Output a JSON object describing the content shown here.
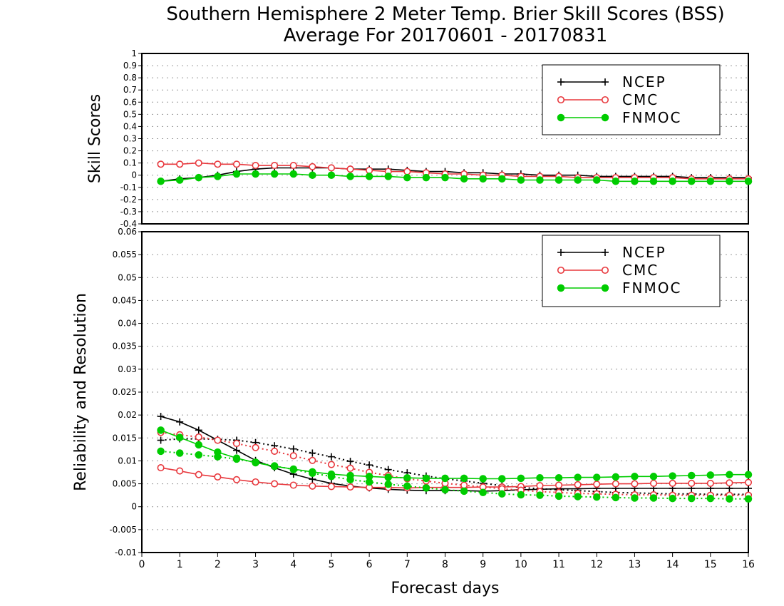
{
  "title_line1": "Southern Hemisphere 2 Meter Temp. Brier Skill Scores (BSS)",
  "title_line2": "Average For 20170601 - 20170831",
  "colors": {
    "NCEP": "#000000",
    "CMC": "#e8383d",
    "FNMOC": "#00cc00"
  },
  "chart_data": [
    {
      "type": "line",
      "ylabel": "Skill Scores",
      "ylim": [
        -0.4,
        1
      ],
      "yticks": [
        "1",
        "0.9",
        "0.8",
        "0.7",
        "0.6",
        "0.5",
        "0.4",
        "0.3",
        "0.2",
        "0.1",
        "0",
        "-0.1",
        "-0.2",
        "-0.3",
        "-0.4"
      ],
      "grid": true,
      "legend": [
        "NCEP",
        "CMC",
        "FNMOC"
      ],
      "legend_position": "top-right",
      "x": [
        0.5,
        1,
        1.5,
        2,
        2.5,
        3,
        3.5,
        4,
        4.5,
        5,
        5.5,
        6,
        6.5,
        7,
        7.5,
        8,
        8.5,
        9,
        9.5,
        10,
        10.5,
        11,
        11.5,
        12,
        12.5,
        13,
        13.5,
        14,
        14.5,
        15,
        15.5,
        16
      ],
      "series": [
        {
          "name": "NCEP",
          "marker": "plus",
          "values": [
            -0.05,
            -0.03,
            -0.02,
            0.0,
            0.03,
            0.05,
            0.06,
            0.06,
            0.06,
            0.06,
            0.05,
            0.05,
            0.05,
            0.04,
            0.03,
            0.03,
            0.02,
            0.02,
            0.01,
            0.01,
            0.0,
            0.0,
            0.0,
            -0.01,
            -0.01,
            -0.01,
            -0.01,
            -0.01,
            -0.02,
            -0.02,
            -0.02,
            -0.02
          ]
        },
        {
          "name": "CMC",
          "marker": "open-circle",
          "values": [
            0.09,
            0.09,
            0.1,
            0.09,
            0.09,
            0.08,
            0.08,
            0.08,
            0.07,
            0.06,
            0.05,
            0.04,
            0.03,
            0.03,
            0.02,
            0.01,
            0.01,
            0.0,
            0.0,
            -0.01,
            -0.01,
            -0.01,
            -0.02,
            -0.02,
            -0.02,
            -0.02,
            -0.02,
            -0.02,
            -0.03,
            -0.03,
            -0.03,
            -0.03
          ]
        },
        {
          "name": "FNMOC",
          "marker": "filled-circle",
          "values": [
            -0.05,
            -0.04,
            -0.02,
            -0.01,
            0.01,
            0.01,
            0.01,
            0.01,
            0.0,
            0.0,
            -0.01,
            -0.01,
            -0.01,
            -0.02,
            -0.02,
            -0.02,
            -0.03,
            -0.03,
            -0.03,
            -0.04,
            -0.04,
            -0.04,
            -0.04,
            -0.04,
            -0.05,
            -0.05,
            -0.05,
            -0.05,
            -0.05,
            -0.05,
            -0.05,
            -0.05
          ]
        }
      ]
    },
    {
      "type": "line",
      "xlabel": "Forecast days",
      "ylabel": "Reliability and Resolution",
      "ylim": [
        -0.01,
        0.06
      ],
      "yticks": [
        "0.06",
        "0.055",
        "0.05",
        "0.045",
        "0.04",
        "0.035",
        "0.03",
        "0.025",
        "0.02",
        "0.015",
        "0.01",
        "0.005",
        "0",
        "-0.005",
        "-0.01"
      ],
      "xlim": [
        0,
        16
      ],
      "xticks": [
        "0",
        "1",
        "2",
        "3",
        "4",
        "5",
        "6",
        "7",
        "8",
        "9",
        "10",
        "11",
        "12",
        "13",
        "14",
        "15",
        "16"
      ],
      "grid": true,
      "legend": [
        "NCEP",
        "CMC",
        "FNMOC"
      ],
      "legend_position": "top-right",
      "x": [
        0.5,
        1,
        1.5,
        2,
        2.5,
        3,
        3.5,
        4,
        4.5,
        5,
        5.5,
        6,
        6.5,
        7,
        7.5,
        8,
        8.5,
        9,
        9.5,
        10,
        10.5,
        11,
        11.5,
        12,
        12.5,
        13,
        13.5,
        14,
        14.5,
        15,
        15.5,
        16
      ],
      "series": [
        {
          "name": "NCEP",
          "metric": "resolution",
          "dash": "solid",
          "marker": "plus",
          "values": [
            0.0197,
            0.0185,
            0.0167,
            0.0145,
            0.0123,
            0.0101,
            0.0085,
            0.0071,
            0.006,
            0.0051,
            0.0045,
            0.0041,
            0.0038,
            0.0036,
            0.0035,
            0.0035,
            0.0035,
            0.0034,
            0.0035,
            0.0037,
            0.0038,
            0.0039,
            0.0039,
            0.004,
            0.004,
            0.004,
            0.004,
            0.004,
            0.004,
            0.004,
            0.004,
            0.004
          ]
        },
        {
          "name": "NCEP",
          "metric": "reliability",
          "dash": "dotted",
          "marker": "plus",
          "values": [
            0.0145,
            0.0148,
            0.0148,
            0.0147,
            0.0145,
            0.014,
            0.0133,
            0.0126,
            0.0117,
            0.0109,
            0.0099,
            0.0091,
            0.0081,
            0.0074,
            0.0067,
            0.0061,
            0.0056,
            0.0051,
            0.0046,
            0.0042,
            0.0039,
            0.0037,
            0.0035,
            0.0033,
            0.0031,
            0.003,
            0.0029,
            0.0028,
            0.0028,
            0.0027,
            0.0027,
            0.0027
          ]
        },
        {
          "name": "CMC",
          "metric": "resolution",
          "dash": "solid",
          "marker": "open-circle",
          "values": [
            0.0085,
            0.0078,
            0.007,
            0.0065,
            0.0059,
            0.0054,
            0.005,
            0.0047,
            0.0045,
            0.0044,
            0.0043,
            0.0042,
            0.0042,
            0.0041,
            0.0042,
            0.0042,
            0.0042,
            0.0043,
            0.0043,
            0.0044,
            0.0046,
            0.0047,
            0.0048,
            0.0049,
            0.005,
            0.005,
            0.0051,
            0.0051,
            0.0051,
            0.0051,
            0.0052,
            0.0053
          ]
        },
        {
          "name": "CMC",
          "metric": "reliability",
          "dash": "dotted",
          "marker": "open-circle",
          "values": [
            0.0162,
            0.0157,
            0.0152,
            0.0145,
            0.0138,
            0.0129,
            0.0121,
            0.0111,
            0.0101,
            0.0092,
            0.0084,
            0.0075,
            0.0068,
            0.0061,
            0.0056,
            0.0051,
            0.0047,
            0.0043,
            0.0039,
            0.0036,
            0.0033,
            0.0031,
            0.0029,
            0.0028,
            0.0027,
            0.0026,
            0.0026,
            0.0025,
            0.0025,
            0.0025,
            0.0025,
            0.0025
          ]
        },
        {
          "name": "FNMOC",
          "metric": "resolution",
          "dash": "solid",
          "marker": "filled-circle",
          "values": [
            0.0167,
            0.0151,
            0.0135,
            0.0119,
            0.0106,
            0.0096,
            0.0088,
            0.0082,
            0.0076,
            0.0071,
            0.0068,
            0.0066,
            0.0064,
            0.0063,
            0.0062,
            0.0062,
            0.0062,
            0.0061,
            0.0061,
            0.0062,
            0.0063,
            0.0063,
            0.0064,
            0.0064,
            0.0065,
            0.0066,
            0.0066,
            0.0067,
            0.0068,
            0.0069,
            0.007,
            0.007
          ]
        },
        {
          "name": "FNMOC",
          "metric": "reliability",
          "dash": "dotted",
          "marker": "filled-circle",
          "values": [
            0.0121,
            0.0117,
            0.0113,
            0.0109,
            0.0104,
            0.0097,
            0.0089,
            0.0081,
            0.0073,
            0.0066,
            0.0059,
            0.0054,
            0.0049,
            0.0045,
            0.0041,
            0.0037,
            0.0034,
            0.0031,
            0.0028,
            0.0026,
            0.0025,
            0.0023,
            0.0022,
            0.0021,
            0.002,
            0.0019,
            0.0019,
            0.0018,
            0.0018,
            0.0018,
            0.0017,
            0.0017
          ]
        }
      ]
    }
  ]
}
